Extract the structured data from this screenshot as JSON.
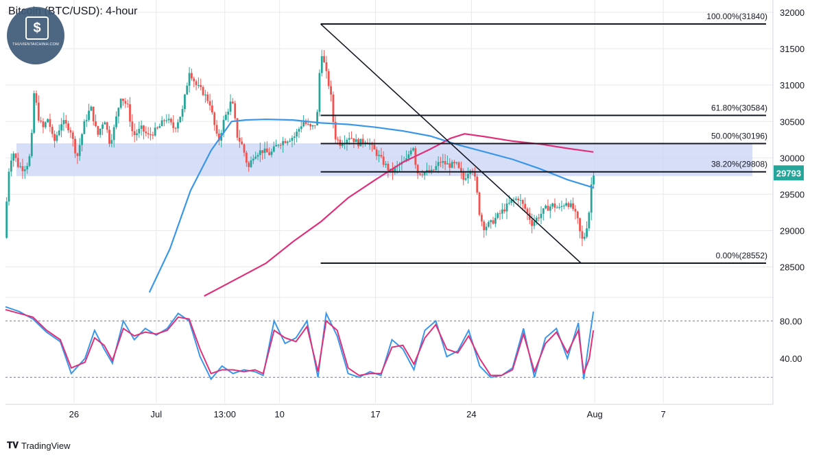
{
  "title": "Bitcoin (BTC/USD): 4-hour",
  "brand": {
    "name": "TradingView",
    "icon": "tradingview-logo-icon",
    "watermark_text": "THUVIENTAICHINH.COM",
    "watermark_icon": "dollar-book-icon"
  },
  "price_axis": {
    "ticks": [
      28500,
      29000,
      29500,
      30000,
      30500,
      31000,
      31500,
      32000
    ],
    "tick_labels": [
      "28500",
      "29000",
      "29500",
      "30000",
      "30500",
      "31000",
      "31500",
      "32000"
    ],
    "ylim": [
      28100,
      32170
    ],
    "current_price": 29793,
    "current_price_label": "29793",
    "current_price_color": "#26a69a"
  },
  "time_axis": {
    "labels": [
      "26",
      "Jul",
      "13:00",
      "10",
      "17",
      "24",
      "Aug",
      "7"
    ],
    "positions": [
      26,
      32,
      37,
      41,
      48,
      55,
      64,
      69
    ],
    "xlim": [
      21,
      77
    ]
  },
  "fibonacci": {
    "levels": [
      {
        "label": "100.00%(31840)",
        "price": 31840
      },
      {
        "label": "61.80%(30584)",
        "price": 30584
      },
      {
        "label": "50.00%(30196)",
        "price": 30196
      },
      {
        "label": "38.20%(29808)",
        "price": 29808
      },
      {
        "label": "0.00%(28552)",
        "price": 28552
      }
    ],
    "x_start": 44.0,
    "x_end": 76.5
  },
  "resistance_zone": {
    "price_low": 29750,
    "price_high": 30200,
    "x_start": 21.8,
    "x_end": 75.5,
    "color": "#c9d3f5"
  },
  "trendline": {
    "start": {
      "x": 44.0,
      "price": 31840
    },
    "end": {
      "x": 63.0,
      "price": 28552
    }
  },
  "colors": {
    "up": "#26a69a",
    "down": "#ef5350",
    "ma_fast": "#3a97e8",
    "ma_slow": "#e0307a",
    "grid": "#e6e9ee",
    "axis_text": "#131722",
    "fib_line": "#131722",
    "dashed": "#787b86"
  },
  "chart_data": [
    {
      "type": "candlestick",
      "title": "Bitcoin (BTC/USD): 4-hour",
      "x_unit": "day index (June 21 = 21, July 1 = 31, Aug 1 = 62)",
      "ylim": [
        28100,
        32170
      ],
      "anchors": [
        [
          21.0,
          28900
        ],
        [
          21.3,
          29800
        ],
        [
          21.6,
          30100
        ],
        [
          22.0,
          29900
        ],
        [
          22.4,
          29850
        ],
        [
          22.8,
          29950
        ],
        [
          23.0,
          30300
        ],
        [
          23.2,
          31000
        ],
        [
          23.4,
          30600
        ],
        [
          23.8,
          30400
        ],
        [
          24.2,
          30550
        ],
        [
          24.6,
          30200
        ],
        [
          25.2,
          30500
        ],
        [
          25.8,
          30400
        ],
        [
          26.3,
          30000
        ],
        [
          26.8,
          30450
        ],
        [
          27.3,
          30700
        ],
        [
          27.8,
          30300
        ],
        [
          28.3,
          30550
        ],
        [
          28.7,
          30200
        ],
        [
          29.0,
          30400
        ],
        [
          29.5,
          30850
        ],
        [
          30.0,
          30700
        ],
        [
          30.4,
          30300
        ],
        [
          31.0,
          30400
        ],
        [
          31.5,
          30300
        ],
        [
          32.2,
          30400
        ],
        [
          32.8,
          30550
        ],
        [
          33.4,
          30400
        ],
        [
          34.0,
          30650
        ],
        [
          34.5,
          31200
        ],
        [
          35.0,
          31000
        ],
        [
          35.5,
          30900
        ],
        [
          36.0,
          30750
        ],
        [
          36.6,
          30200
        ],
        [
          37.0,
          30500
        ],
        [
          37.6,
          30800
        ],
        [
          38.0,
          30300
        ],
        [
          38.4,
          30150
        ],
        [
          38.8,
          29850
        ],
        [
          39.2,
          30050
        ],
        [
          39.8,
          30100
        ],
        [
          40.4,
          30050
        ],
        [
          41.0,
          30200
        ],
        [
          41.6,
          30250
        ],
        [
          42.2,
          30300
        ],
        [
          42.8,
          30500
        ],
        [
          43.4,
          30400
        ],
        [
          43.8,
          30500
        ],
        [
          44.1,
          31500
        ],
        [
          44.5,
          31150
        ],
        [
          44.8,
          30900
        ],
        [
          45.1,
          30300
        ],
        [
          45.5,
          30200
        ],
        [
          46.2,
          30300
        ],
        [
          46.8,
          30200
        ],
        [
          47.4,
          30250
        ],
        [
          48.0,
          30100
        ],
        [
          48.6,
          29950
        ],
        [
          49.2,
          29800
        ],
        [
          49.8,
          29900
        ],
        [
          50.3,
          29950
        ],
        [
          50.8,
          30200
        ],
        [
          51.1,
          29800
        ],
        [
          51.6,
          29800
        ],
        [
          52.2,
          29800
        ],
        [
          52.8,
          29950
        ],
        [
          53.4,
          29900
        ],
        [
          54.0,
          29900
        ],
        [
          54.5,
          29700
        ],
        [
          54.8,
          29800
        ],
        [
          55.1,
          29900
        ],
        [
          55.4,
          29650
        ],
        [
          55.7,
          29200
        ],
        [
          56.0,
          29050
        ],
        [
          56.5,
          29100
        ],
        [
          57.0,
          29200
        ],
        [
          57.5,
          29300
        ],
        [
          58.0,
          29400
        ],
        [
          58.5,
          29450
        ],
        [
          59.0,
          29300
        ],
        [
          59.5,
          29100
        ],
        [
          60.0,
          29200
        ],
        [
          60.5,
          29300
        ],
        [
          61.0,
          29350
        ],
        [
          61.5,
          29300
        ],
        [
          62.0,
          29400
        ],
        [
          62.5,
          29300
        ],
        [
          62.9,
          29100
        ],
        [
          63.1,
          28850
        ],
        [
          63.4,
          28950
        ],
        [
          63.7,
          29300
        ],
        [
          63.9,
          29800
        ]
      ]
    },
    {
      "type": "line",
      "series": [
        {
          "name": "",
          "role": "moving-average-fast",
          "points": [
            [
              31.5,
              28150
            ],
            [
              33.0,
              28750
            ],
            [
              34.5,
              29550
            ],
            [
              36.0,
              30100
            ],
            [
              37.5,
              30500
            ],
            [
              38.5,
              30520
            ],
            [
              40.0,
              30530
            ],
            [
              42.0,
              30520
            ],
            [
              44.0,
              30480
            ],
            [
              46.0,
              30460
            ],
            [
              48.0,
              30420
            ],
            [
              50.0,
              30370
            ],
            [
              52.0,
              30300
            ],
            [
              54.0,
              30180
            ],
            [
              56.0,
              30080
            ],
            [
              58.0,
              29980
            ],
            [
              60.0,
              29850
            ],
            [
              62.0,
              29700
            ],
            [
              63.9,
              29590
            ]
          ]
        },
        {
          "name": "",
          "role": "moving-average-slow",
          "points": [
            [
              35.5,
              28100
            ],
            [
              37.5,
              28300
            ],
            [
              40.0,
              28550
            ],
            [
              42.0,
              28850
            ],
            [
              44.0,
              29120
            ],
            [
              46.0,
              29450
            ],
            [
              48.0,
              29700
            ],
            [
              50.0,
              29940
            ],
            [
              52.0,
              30120
            ],
            [
              53.5,
              30270
            ],
            [
              54.5,
              30330
            ],
            [
              56.0,
              30290
            ],
            [
              58.0,
              30230
            ],
            [
              60.0,
              30190
            ],
            [
              62.0,
              30130
            ],
            [
              63.9,
              30080
            ]
          ]
        }
      ]
    },
    {
      "type": "line",
      "indicator": "oscillator",
      "ylim": [
        0,
        105
      ],
      "ticks": [
        40,
        80
      ],
      "tick_labels": [
        "40.00",
        "80.00"
      ],
      "bands": [
        20,
        80
      ],
      "series": [
        {
          "name": "",
          "role": "oscillator-fast",
          "points": [
            [
              21.0,
              95
            ],
            [
              22.0,
              90
            ],
            [
              23.0,
              82
            ],
            [
              24.0,
              68
            ],
            [
              25.0,
              58
            ],
            [
              25.8,
              24
            ],
            [
              26.8,
              40
            ],
            [
              27.5,
              70
            ],
            [
              28.2,
              50
            ],
            [
              28.8,
              35
            ],
            [
              29.6,
              80
            ],
            [
              30.4,
              60
            ],
            [
              31.2,
              72
            ],
            [
              32.0,
              65
            ],
            [
              32.8,
              72
            ],
            [
              33.6,
              88
            ],
            [
              34.4,
              80
            ],
            [
              35.2,
              42
            ],
            [
              36.0,
              18
            ],
            [
              36.8,
              32
            ],
            [
              37.6,
              24
            ],
            [
              38.4,
              28
            ],
            [
              39.2,
              26
            ],
            [
              39.8,
              22
            ],
            [
              40.6,
              80
            ],
            [
              41.4,
              56
            ],
            [
              42.2,
              62
            ],
            [
              43.0,
              80
            ],
            [
              43.8,
              20
            ],
            [
              44.4,
              88
            ],
            [
              45.2,
              64
            ],
            [
              46.0,
              24
            ],
            [
              46.8,
              20
            ],
            [
              47.6,
              26
            ],
            [
              48.4,
              22
            ],
            [
              49.2,
              60
            ],
            [
              50.0,
              50
            ],
            [
              50.8,
              28
            ],
            [
              51.6,
              70
            ],
            [
              52.4,
              80
            ],
            [
              53.2,
              42
            ],
            [
              54.0,
              48
            ],
            [
              54.8,
              70
            ],
            [
              55.6,
              32
            ],
            [
              56.4,
              20
            ],
            [
              57.2,
              22
            ],
            [
              58.0,
              30
            ],
            [
              58.8,
              72
            ],
            [
              59.6,
              20
            ],
            [
              60.4,
              62
            ],
            [
              61.2,
              72
            ],
            [
              62.0,
              40
            ],
            [
              62.8,
              78
            ],
            [
              63.2,
              18
            ],
            [
              63.6,
              60
            ],
            [
              63.9,
              90
            ]
          ]
        },
        {
          "name": "",
          "role": "oscillator-slow",
          "points": [
            [
              21.0,
              92
            ],
            [
              22.0,
              88
            ],
            [
              23.0,
              84
            ],
            [
              24.0,
              70
            ],
            [
              25.0,
              60
            ],
            [
              25.8,
              30
            ],
            [
              26.8,
              36
            ],
            [
              27.5,
              62
            ],
            [
              28.2,
              54
            ],
            [
              28.8,
              38
            ],
            [
              29.6,
              72
            ],
            [
              30.4,
              64
            ],
            [
              31.2,
              68
            ],
            [
              32.0,
              66
            ],
            [
              32.8,
              70
            ],
            [
              33.6,
              84
            ],
            [
              34.4,
              82
            ],
            [
              35.2,
              50
            ],
            [
              36.0,
              24
            ],
            [
              36.8,
              28
            ],
            [
              37.6,
              28
            ],
            [
              38.4,
              26
            ],
            [
              39.2,
              28
            ],
            [
              39.8,
              24
            ],
            [
              40.6,
              70
            ],
            [
              41.4,
              62
            ],
            [
              42.2,
              58
            ],
            [
              43.0,
              74
            ],
            [
              43.8,
              26
            ],
            [
              44.4,
              80
            ],
            [
              45.2,
              70
            ],
            [
              46.0,
              30
            ],
            [
              46.8,
              22
            ],
            [
              47.6,
              24
            ],
            [
              48.4,
              24
            ],
            [
              49.2,
              52
            ],
            [
              50.0,
              54
            ],
            [
              50.8,
              34
            ],
            [
              51.6,
              62
            ],
            [
              52.4,
              76
            ],
            [
              53.2,
              50
            ],
            [
              54.0,
              46
            ],
            [
              54.8,
              64
            ],
            [
              55.6,
              40
            ],
            [
              56.4,
              22
            ],
            [
              57.2,
              22
            ],
            [
              58.0,
              28
            ],
            [
              58.8,
              66
            ],
            [
              59.6,
              26
            ],
            [
              60.4,
              56
            ],
            [
              61.2,
              68
            ],
            [
              62.0,
              46
            ],
            [
              62.8,
              70
            ],
            [
              63.2,
              24
            ],
            [
              63.6,
              40
            ],
            [
              63.9,
              70
            ]
          ]
        }
      ]
    }
  ]
}
